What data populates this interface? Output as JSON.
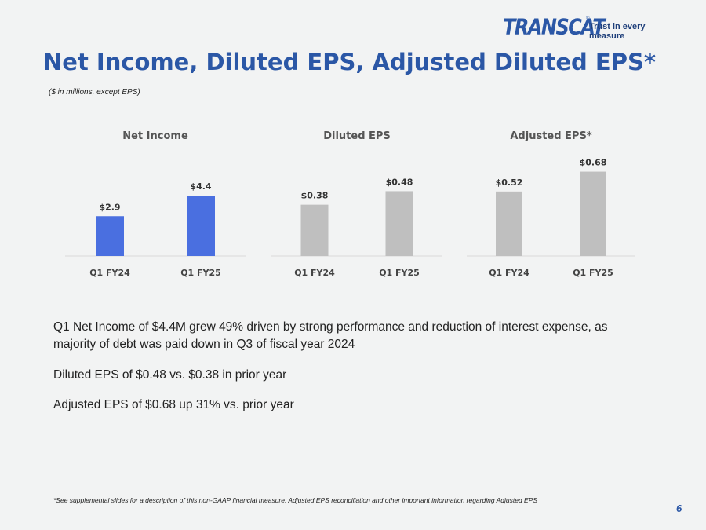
{
  "logo": {
    "word": "TRANSCAT",
    "reg": "®",
    "tagline": "Trust in every measure"
  },
  "title": "Net Income, Diluted EPS, Adjusted Diluted EPS*",
  "subtitle": "($ in millions, except EPS)",
  "colors": {
    "accent": "#2b57a6",
    "net_income_bar": "#4a6fe0",
    "eps_bar": "#bfbfbf"
  },
  "chart_data": [
    {
      "type": "bar",
      "title": "Net Income",
      "categories": [
        "Q1 FY24",
        "Q1 FY25"
      ],
      "values": [
        2.9,
        4.4
      ],
      "data_labels": [
        "$2.9",
        "$4.4"
      ],
      "color": "#4a6fe0"
    },
    {
      "type": "bar",
      "title": "Diluted EPS",
      "categories": [
        "Q1 FY24",
        "Q1 FY25"
      ],
      "values": [
        0.38,
        0.48
      ],
      "data_labels": [
        "$0.38",
        "$0.48"
      ],
      "color": "#bfbfbf"
    },
    {
      "type": "bar",
      "title": "Adjusted EPS*",
      "categories": [
        "Q1 FY24",
        "Q1 FY25"
      ],
      "values": [
        0.52,
        0.68
      ],
      "data_labels": [
        "$0.52",
        "$0.68"
      ],
      "color": "#bfbfbf"
    }
  ],
  "bullets": [
    "Q1 Net Income of $4.4M grew 49% driven by strong performance and reduction of interest expense, as majority of debt was paid down in Q3 of fiscal year 2024",
    "Diluted EPS of  $0.48 vs. $0.38 in prior year",
    "Adjusted EPS of $0.68 up 31% vs. prior year"
  ],
  "footnote": "*See supplemental slides for a description of this non-GAAP financial measure, Adjusted EPS reconciliation and other important information regarding Adjusted EPS",
  "page_number": "6"
}
